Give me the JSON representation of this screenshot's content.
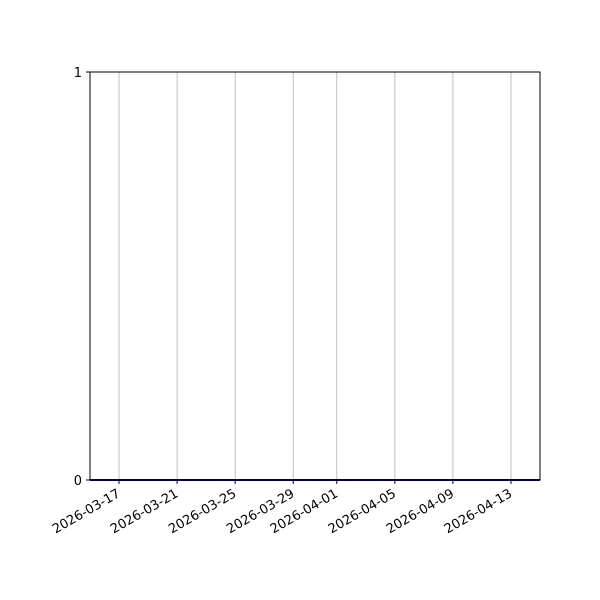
{
  "chart_data": {
    "type": "line",
    "title": "",
    "xlabel": "",
    "ylabel": "",
    "xlim": [
      "2026-03-15",
      "2026-04-15"
    ],
    "ylim": [
      0,
      1
    ],
    "x_ticks": [
      "2026-03-17",
      "2026-03-21",
      "2026-03-25",
      "2026-03-29",
      "2026-04-01",
      "2026-04-05",
      "2026-04-09",
      "2026-04-13"
    ],
    "y_ticks": [
      "0",
      "1"
    ],
    "grid": {
      "x": true,
      "y": false
    },
    "series": [
      {
        "x": [
          "2026-03-15",
          "2026-04-15"
        ],
        "y": [
          0,
          0
        ],
        "color": "#0000aa"
      }
    ]
  }
}
